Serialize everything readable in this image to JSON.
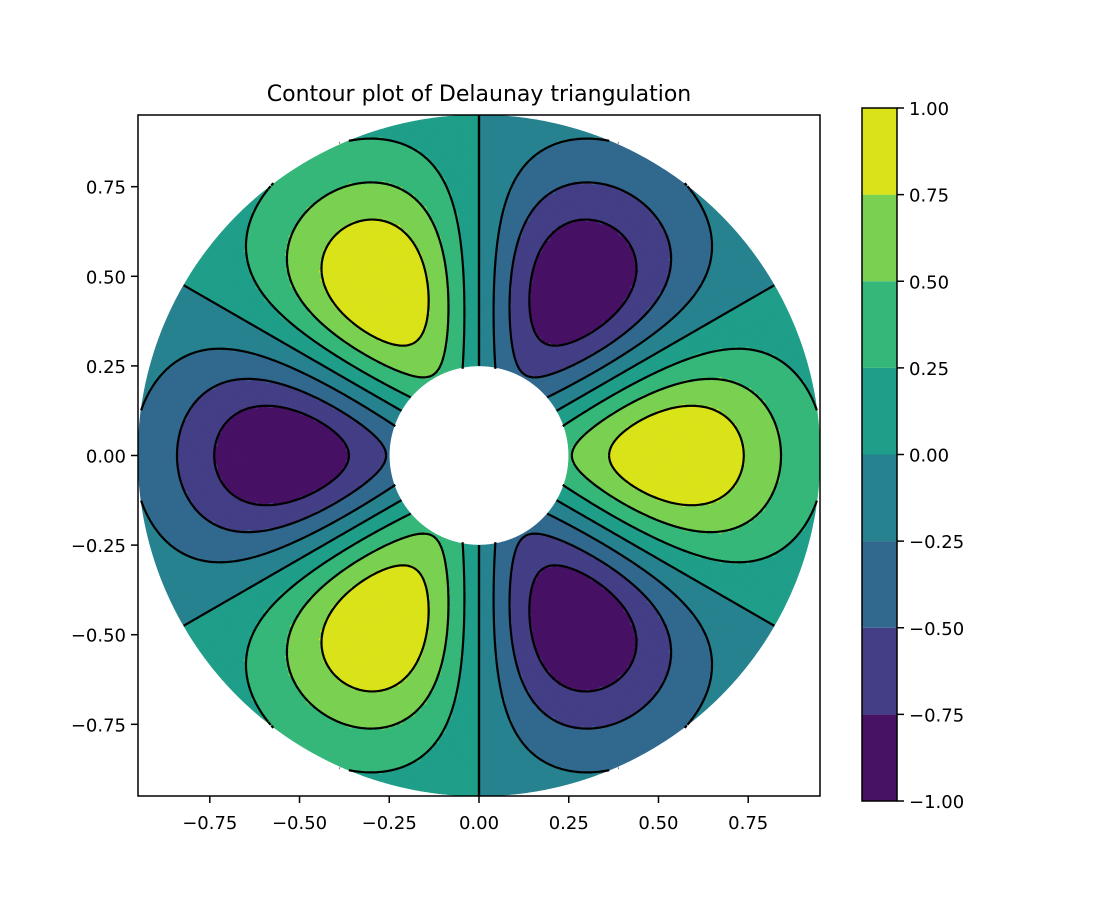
{
  "chart_data": {
    "type": "contourf",
    "title": "Contour plot of Delaunay triangulation",
    "xlabel": "",
    "ylabel": "",
    "xlim": [
      -0.95,
      0.95
    ],
    "ylim": [
      -0.95,
      0.95
    ],
    "xticks": [
      -0.75,
      -0.5,
      -0.25,
      0.0,
      0.25,
      0.5,
      0.75
    ],
    "xtick_labels": [
      "−0.75",
      "−0.50",
      "−0.25",
      "0.00",
      "0.25",
      "0.50",
      "0.75"
    ],
    "yticks": [
      -0.75,
      -0.5,
      -0.25,
      0.0,
      0.25,
      0.5,
      0.75
    ],
    "ytick_labels": [
      "−0.75",
      "−0.50",
      "−0.25",
      "0.00",
      "0.25",
      "0.50",
      "0.75"
    ],
    "domain": {
      "shape": "annulus",
      "inner_radius": 0.25,
      "outer_radius": 0.95
    },
    "field": {
      "angular_frequency": 3,
      "radial_peak": 0.55,
      "radial_width": 0.35
    },
    "levels": [
      -1.0,
      -0.75,
      -0.5,
      -0.25,
      0.0,
      0.25,
      0.5,
      0.75,
      1.0
    ],
    "contour_lines": {
      "color": "#000000",
      "negative_style": "dashed",
      "positive_style": "solid"
    },
    "colormap": "viridis",
    "band_colors": [
      "#471164",
      "#433e85",
      "#31688e",
      "#26828e",
      "#1f9e89",
      "#35b779",
      "#7ad151",
      "#dae319"
    ],
    "colorbar": {
      "ticks": [
        -1.0,
        -0.75,
        -0.5,
        -0.25,
        0.0,
        0.25,
        0.5,
        0.75,
        1.0
      ],
      "tick_labels": [
        "−1.00",
        "−0.75",
        "−0.50",
        "−0.25",
        "0.00",
        "0.25",
        "0.50",
        "0.75",
        "1.00"
      ]
    }
  }
}
